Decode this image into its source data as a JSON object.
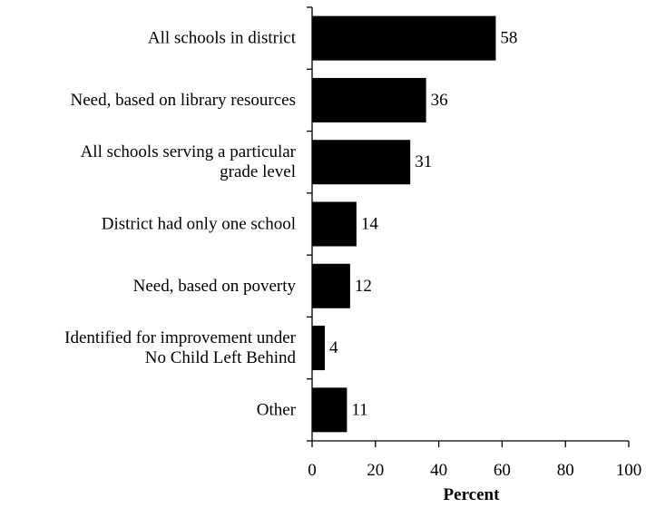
{
  "chart_data": {
    "type": "bar",
    "orientation": "horizontal",
    "categories": [
      "All schools in district",
      "Need, based on library resources",
      "All schools serving a particular grade level",
      "District had only one school",
      "Need, based on poverty",
      "Identified for improvement under No Child Left Behind",
      "Other"
    ],
    "category_lines": [
      [
        "All schools in district"
      ],
      [
        "Need, based on library resources"
      ],
      [
        "All schools serving a particular",
        "grade level"
      ],
      [
        "District had only one school"
      ],
      [
        "Need, based on poverty"
      ],
      [
        "Identified for improvement under",
        "No Child Left Behind"
      ],
      [
        "Other"
      ]
    ],
    "values": [
      58,
      36,
      31,
      14,
      12,
      4,
      11
    ],
    "xlabel": "Percent",
    "ylabel": "",
    "title": "",
    "xlim": [
      0,
      100
    ],
    "xticks": [
      0,
      20,
      40,
      60,
      80,
      100
    ],
    "grid": false,
    "bar_color": "#000000"
  }
}
